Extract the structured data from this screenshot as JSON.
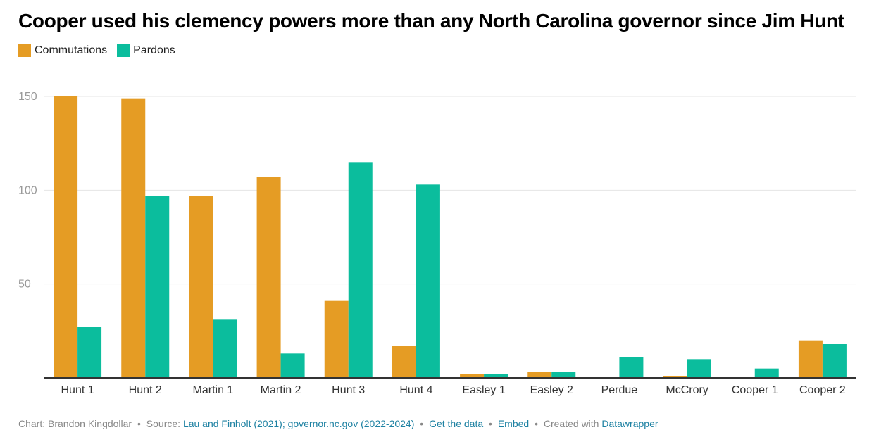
{
  "chart_data": {
    "type": "bar",
    "title": "Cooper used his clemency powers more than any North Carolina governor since Jim Hunt",
    "xlabel": "",
    "ylabel": "",
    "ylim": [
      0,
      150
    ],
    "yticks": [
      50,
      100,
      150
    ],
    "grid": true,
    "legend_position": "top-left",
    "categories": [
      "Hunt 1",
      "Hunt 2",
      "Martin 1",
      "Martin 2",
      "Hunt 3",
      "Hunt 4",
      "Easley 1",
      "Easley 2",
      "Perdue",
      "McCrory",
      "Cooper 1",
      "Cooper 2"
    ],
    "series": [
      {
        "name": "Commutations",
        "color": "#e59c24",
        "values": [
          150,
          149,
          97,
          107,
          41,
          17,
          2,
          3,
          0,
          1,
          0,
          20
        ]
      },
      {
        "name": "Pardons",
        "color": "#0bbd9d",
        "values": [
          27,
          97,
          31,
          13,
          115,
          103,
          2,
          3,
          11,
          10,
          5,
          18
        ]
      }
    ]
  },
  "footer": {
    "chart_by": "Chart: Brandon Kingdollar",
    "source_label": "Source:",
    "source_link": "Lau and Finholt (2021); governor.nc.gov (2022-2024)",
    "get_data": "Get the data",
    "embed": "Embed",
    "created_with": "Created with",
    "datawrapper": "Datawrapper",
    "bullet": "•"
  },
  "colors": {
    "grid": "#e4e4e4",
    "axis": "#333333",
    "tick_text": "#999999",
    "category_text": "#333333"
  }
}
